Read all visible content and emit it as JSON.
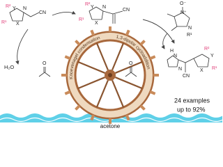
{
  "scheme": {
    "substrate": {
      "r2": "R²",
      "y": "Y",
      "n": "N",
      "x": "X",
      "r1": "R¹",
      "cn": "CN"
    },
    "intermediate": {
      "r2": "R²",
      "y": "Y",
      "n": "N",
      "x": "X",
      "r1": "R¹",
      "cn": "CN"
    },
    "nitrone": {
      "o": "O⁻",
      "n1": "N⁺",
      "n2": "N",
      "r1": "R¹"
    },
    "product": {
      "h": "H",
      "n1": "N",
      "n2": "N",
      "r2": "R²",
      "y": "Y",
      "x": "X",
      "r1": "R¹",
      "cn": "CN"
    },
    "byproduct": "H₂O",
    "acetone_left_o": "O",
    "acetone_right_o": "O",
    "step1": "Knoevenagel condensation",
    "step2": "1,3-dipolar cycloaddition",
    "summary": [
      "24 examples",
      "up to 92%"
    ],
    "solvent": "acetone"
  }
}
